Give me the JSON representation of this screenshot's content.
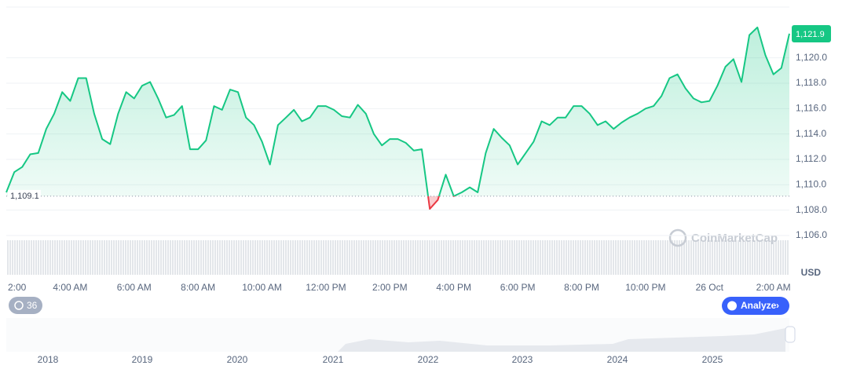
{
  "chart_data": {
    "type": "line",
    "categories": [
      "2:00",
      null,
      null,
      null,
      null,
      null,
      null,
      null,
      "4:00 AM",
      null,
      null,
      null,
      null,
      null,
      null,
      null,
      "6:00 AM",
      null,
      null,
      null,
      null,
      null,
      null,
      null,
      "8:00 AM",
      null,
      null,
      null,
      null,
      null,
      null,
      null,
      "10:00 AM",
      null,
      null,
      null,
      null,
      null,
      null,
      null,
      "12:00 PM",
      null,
      null,
      null,
      null,
      null,
      null,
      null,
      "2:00 PM",
      null,
      null,
      null,
      null,
      null,
      null,
      null,
      "4:00 PM",
      null,
      null,
      null,
      null,
      null,
      null,
      null,
      "6:00 PM",
      null,
      null,
      null,
      null,
      null,
      null,
      null,
      "8:00 PM",
      null,
      null,
      null,
      null,
      null,
      null,
      null,
      "10:00 PM",
      null,
      null,
      null,
      null,
      null,
      null,
      null,
      "26 Oct",
      null,
      null,
      null,
      null,
      null,
      null,
      null,
      "2:00 AM",
      null,
      null
    ],
    "series": [
      {
        "color": "#16c784",
        "below_color": "#ea3943",
        "values": [
          1109.4,
          1111.0,
          1111.4,
          1112.4,
          1112.5,
          1114.4,
          1115.6,
          1117.3,
          1116.6,
          1118.4,
          1118.4,
          1115.6,
          1113.6,
          1113.2,
          1115.6,
          1117.3,
          1116.8,
          1117.8,
          1118.1,
          1116.8,
          1115.3,
          1115.5,
          1116.2,
          1112.8,
          1112.8,
          1113.5,
          1116.2,
          1115.9,
          1117.5,
          1117.3,
          1115.3,
          1114.7,
          1113.4,
          1111.6,
          1114.7,
          1115.3,
          1115.9,
          1115.0,
          1115.3,
          1116.2,
          1116.2,
          1115.9,
          1115.4,
          1115.3,
          1116.3,
          1115.6,
          1114.0,
          1113.1,
          1113.6,
          1113.6,
          1113.3,
          1112.7,
          1112.8,
          1108.1,
          1108.8,
          1110.8,
          1109.1,
          1109.4,
          1109.8,
          1109.4,
          1112.5,
          1114.4,
          1113.7,
          1113.1,
          1111.6,
          1112.5,
          1113.4,
          1115.0,
          1114.7,
          1115.3,
          1115.3,
          1116.2,
          1116.2,
          1115.6,
          1114.7,
          1115.0,
          1114.4,
          1114.9,
          1115.3,
          1115.6,
          1116.0,
          1116.2,
          1117.0,
          1118.4,
          1118.7,
          1117.6,
          1116.8,
          1116.5,
          1116.6,
          1117.8,
          1119.3,
          1119.9,
          1118.1,
          1121.8,
          1122.4,
          1120.2,
          1118.7,
          1119.2,
          1121.9
        ]
      }
    ],
    "ylim": [
      1106,
      1124
    ],
    "yticks": [
      {
        "value": 1106,
        "label": "1,106.0"
      },
      {
        "value": 1108,
        "label": "1,108.0"
      },
      {
        "value": 1110,
        "label": "1,110.0"
      },
      {
        "value": 1112,
        "label": "1,112.0"
      },
      {
        "value": 1114,
        "label": "1,114.0"
      },
      {
        "value": 1116,
        "label": "1,116.0"
      },
      {
        "value": 1118,
        "label": "1,118.0"
      },
      {
        "value": 1120,
        "label": "1,120.0"
      }
    ],
    "grid": true,
    "baseline": {
      "value": 1109.1,
      "label": "1,109.1"
    },
    "current_price": {
      "value": 1121.9,
      "label": "1,121.9"
    },
    "currency_label": "USD",
    "watermark": "CoinMarketCap",
    "badge_count": 36,
    "analyze_button": "Analyze",
    "navigator_years": [
      "2018",
      "2019",
      "2020",
      "2021",
      "2022",
      "2023",
      "2024",
      "2025"
    ]
  }
}
